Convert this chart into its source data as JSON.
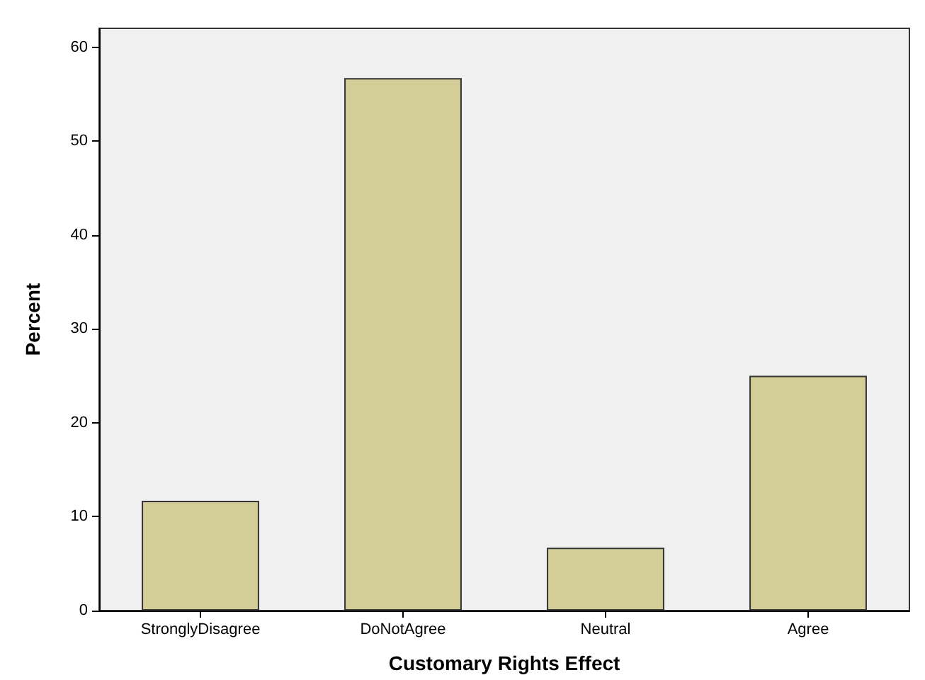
{
  "chart_data": {
    "type": "bar",
    "xlabel": "Customary Rights Effect",
    "ylabel": "Percent",
    "categories": [
      "StronglyDisagree",
      "DoNotAgree",
      "Neutral",
      "Agree"
    ],
    "values": [
      11.7,
      56.7,
      6.7,
      25.0
    ],
    "color": "#d3ce98",
    "ylim": [
      0,
      62
    ],
    "yticks": [
      0,
      10,
      20,
      30,
      40,
      50,
      60
    ],
    "grid": false
  }
}
